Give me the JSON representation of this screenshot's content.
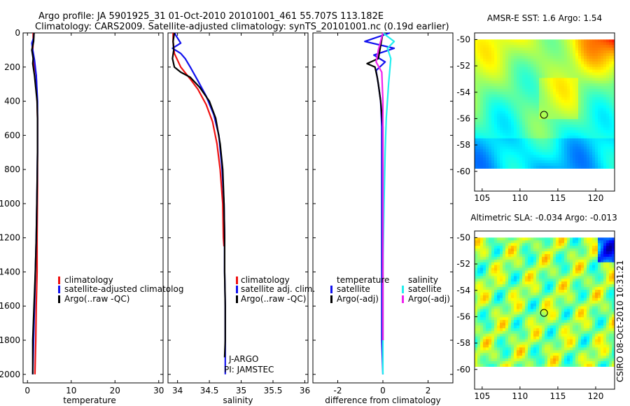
{
  "header": {
    "line1": "Argo profile: JA 5901925_31 01-Oct-2010 20101001_461 55.707S 113.182E",
    "line2": "Climatology: CARS2009. Satellite-adjusted climatology: synTS_20101001.nc (0.19d earlier)"
  },
  "colors": {
    "red": "#ee1111",
    "blue": "#1111ee",
    "black": "#000000",
    "cyan": "#22eeee",
    "magenta": "#ee22ee"
  },
  "credit": "CSIRO 08-Oct-2010 10:31:21",
  "chart_data": [
    {
      "id": "temperature",
      "type": "line",
      "xlabel": "temperature",
      "ylabel": "",
      "xlim": [
        -1,
        31
      ],
      "ylim": [
        2050,
        0
      ],
      "xticks": [
        0,
        10,
        20,
        30
      ],
      "yticks": [
        0,
        200,
        400,
        600,
        800,
        1000,
        1200,
        1400,
        1600,
        1800,
        2000
      ],
      "legend": {
        "placement": "center-left",
        "items": [
          {
            "label": "climatology",
            "color": "#ee1111"
          },
          {
            "label": "satellite-adjusted climatolog",
            "color": "#1111ee"
          },
          {
            "label": "Argo(..raw -QC)",
            "color": "#000000"
          }
        ]
      },
      "series": [
        {
          "name": "climatology",
          "color": "#ee1111",
          "x": [
            1.3,
            1.3,
            1.2,
            1.3,
            2.0,
            2.2,
            2.3,
            2.3,
            2.3,
            2.2,
            2.2,
            2.0,
            1.9,
            1.7
          ],
          "y": [
            0,
            50,
            100,
            150,
            250,
            400,
            500,
            700,
            900,
            1200,
            1400,
            1600,
            1800,
            2000
          ]
        },
        {
          "name": "satellite-adjusted climatology",
          "color": "#1111ee",
          "x": [
            1.5,
            1.4,
            1.0,
            1.2,
            1.6,
            2.0,
            2.3,
            2.3,
            2.3,
            2.2,
            2.0,
            1.8,
            1.6,
            1.4,
            1.2
          ],
          "y": [
            0,
            30,
            60,
            100,
            160,
            250,
            400,
            500,
            700,
            900,
            1200,
            1400,
            1600,
            1800,
            2000
          ]
        },
        {
          "name": "Argo(..raw -QC)",
          "color": "#000000",
          "x": [
            1.5,
            1.4,
            1.0,
            1.3,
            1.2,
            1.6,
            2.2,
            2.3,
            2.3,
            2.2,
            2.0,
            1.8,
            1.5,
            1.2,
            1.2
          ],
          "y": [
            0,
            50,
            100,
            150,
            180,
            250,
            400,
            500,
            700,
            900,
            1200,
            1400,
            1600,
            1800,
            2000
          ]
        }
      ]
    },
    {
      "id": "salinity",
      "type": "line",
      "xlabel": "salinity",
      "ylabel": "",
      "xlim": [
        33.85,
        36.05
      ],
      "ylim": [
        2050,
        0
      ],
      "xticks": [
        34,
        34.5,
        35,
        35.5,
        36
      ],
      "xtick_labels": [
        "34",
        "34.5",
        "35",
        "35.5",
        "36"
      ],
      "legend": {
        "placement": "center-left",
        "items": [
          {
            "label": "climatology",
            "color": "#ee1111"
          },
          {
            "label": "satellite adj. clim.",
            "color": "#1111ee"
          },
          {
            "label": "Argo(..raw -QC)",
            "color": "#000000"
          }
        ]
      },
      "annotation": [
        "J-ARGO",
        "PI: JAMSTEC"
      ],
      "series": [
        {
          "name": "climatology",
          "color": "#ee1111",
          "x": [
            33.93,
            33.93,
            33.95,
            34.05,
            34.2,
            34.32,
            34.45,
            34.55,
            34.62,
            34.67,
            34.71,
            34.72,
            34.73
          ],
          "y": [
            0,
            50,
            120,
            200,
            270,
            330,
            420,
            520,
            650,
            800,
            1000,
            1200,
            1250
          ]
        },
        {
          "name": "satellite adj. clim.",
          "color": "#1111ee",
          "x": [
            33.95,
            34.0,
            34.05,
            33.92,
            34.05,
            34.12,
            34.2,
            34.32,
            34.45,
            34.57,
            34.65,
            34.7,
            34.73,
            34.74,
            34.74,
            34.75,
            34.75,
            34.75
          ],
          "y": [
            0,
            30,
            60,
            90,
            120,
            150,
            200,
            280,
            370,
            480,
            600,
            800,
            1000,
            1200,
            1400,
            1600,
            1800,
            2000
          ]
        },
        {
          "name": "Argo(..raw -QC)",
          "color": "#000000",
          "x": [
            33.95,
            33.93,
            33.94,
            33.92,
            33.95,
            34.05,
            34.2,
            34.35,
            34.5,
            34.6,
            34.67,
            34.71,
            34.73,
            34.74,
            34.74,
            34.75,
            34.75,
            34.74
          ],
          "y": [
            0,
            50,
            100,
            150,
            200,
            230,
            260,
            320,
            400,
            500,
            650,
            800,
            1000,
            1200,
            1400,
            1600,
            1800,
            1900
          ]
        }
      ]
    },
    {
      "id": "difference",
      "type": "line",
      "xlabel": "difference from climatology",
      "ylabel": "",
      "xlim": [
        -3.1,
        3.1
      ],
      "ylim": [
        2050,
        0
      ],
      "xticks": [
        -2,
        0,
        2
      ],
      "legend": {
        "placement": "center",
        "groups": [
          {
            "title": "temperature",
            "items": [
              {
                "label": "satellite",
                "color": "#1111ee"
              },
              {
                "label": "Argo(-adj)",
                "color": "#000000"
              }
            ]
          },
          {
            "title": "salinity",
            "items": [
              {
                "label": "satellite",
                "color": "#22eeee"
              },
              {
                "label": "Argo(-adj)",
                "color": "#ee22ee"
              }
            ]
          }
        ]
      },
      "series": [
        {
          "name": "temperature satellite",
          "color": "#1111ee",
          "x": [
            0.3,
            -0.8,
            0.5,
            -0.4,
            0.1,
            -0.3,
            -0.2,
            -0.1,
            -0.05,
            -0.05,
            -0.05,
            -0.05,
            -0.05,
            -0.05,
            0.0
          ],
          "y": [
            0,
            50,
            90,
            130,
            170,
            220,
            300,
            400,
            550,
            700,
            900,
            1200,
            1500,
            1800,
            2000
          ]
        },
        {
          "name": "temperature Argo(-adj)",
          "color": "#000000",
          "x": [
            0.0,
            -0.2,
            -0.7,
            -0.35,
            -0.25,
            -0.2,
            -0.1,
            0.0,
            0.0,
            0.0,
            0.0,
            0.0,
            0.0
          ],
          "y": [
            0,
            150,
            180,
            200,
            260,
            300,
            400,
            550,
            700,
            900,
            1200,
            1500,
            1800
          ]
        },
        {
          "name": "salinity satellite",
          "color": "#22eeee",
          "x": [
            0.0,
            0.5,
            0.2,
            0.35,
            0.25,
            0.15,
            0.1,
            0.05,
            0.0,
            0.0,
            0.0
          ],
          "y": [
            0,
            50,
            90,
            150,
            300,
            500,
            700,
            1000,
            1400,
            1800,
            2000
          ]
        },
        {
          "name": "salinity Argo(-adj)",
          "color": "#ee22ee",
          "x": [
            0.0,
            -0.2,
            -0.3,
            -0.05,
            0.0,
            0.0,
            0.0
          ],
          "y": [
            0,
            100,
            170,
            230,
            400,
            1000,
            1800
          ]
        }
      ]
    }
  ],
  "maps": [
    {
      "id": "sst-map",
      "title": "AMSR-E SST: 1.6 Argo: 1.54",
      "xlim": [
        104,
        122.5
      ],
      "ylim": [
        -61.5,
        -49.5
      ],
      "data_ylim": [
        -60,
        -50
      ],
      "xticks": [
        105,
        110,
        115,
        120
      ],
      "yticks": [
        -50,
        -52,
        -54,
        -56,
        -58,
        -60
      ],
      "marker": {
        "lon": 113.18,
        "lat": -55.71
      },
      "colormap": "jet"
    },
    {
      "id": "sla-map",
      "title": "Altimetric SLA: -0.034 Argo: -0.013",
      "xlim": [
        104,
        122.5
      ],
      "ylim": [
        -61.5,
        -49.5
      ],
      "data_ylim": [
        -60,
        -50
      ],
      "xticks": [
        105,
        110,
        115,
        120
      ],
      "yticks": [
        -50,
        -52,
        -54,
        -56,
        -58,
        -60
      ],
      "marker": {
        "lon": 113.18,
        "lat": -55.71
      },
      "colormap": "jet"
    }
  ]
}
